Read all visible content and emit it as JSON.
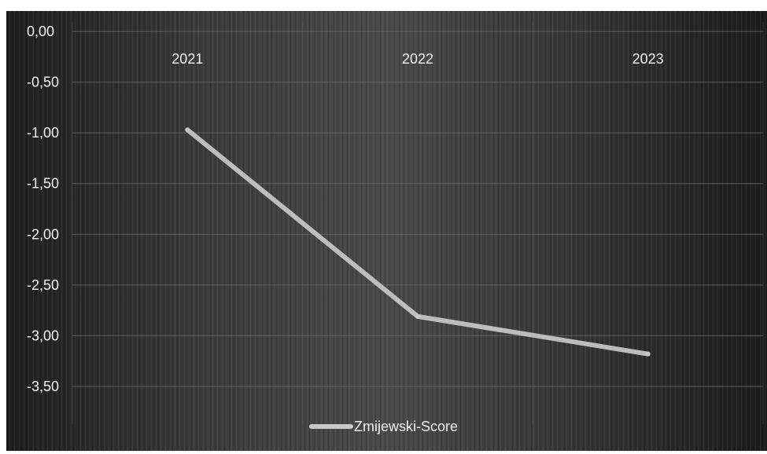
{
  "chart_data": {
    "type": "line",
    "categories": [
      "2021",
      "2022",
      "2023"
    ],
    "series": [
      {
        "name": "Zmijewski-Score",
        "values": [
          -0.97,
          -2.81,
          -3.18
        ]
      }
    ],
    "ylim": [
      -3.5,
      0
    ],
    "yticks": [
      0,
      -0.5,
      -1,
      -1.5,
      -2,
      -2.5,
      -3,
      -3.5
    ],
    "ytick_labels": [
      "0,00",
      "-0,50",
      "-1,00",
      "-1,50",
      "-2,00",
      "-2,50",
      "-3,00",
      "-3,50"
    ],
    "xaxis_position": "top",
    "grid": true,
    "legend_position": "bottom-center",
    "colors": {
      "background": "#2b2b2b",
      "line": "#c8c8c8",
      "grid": "#6a6a6a",
      "text": "#f2f2f2"
    }
  }
}
